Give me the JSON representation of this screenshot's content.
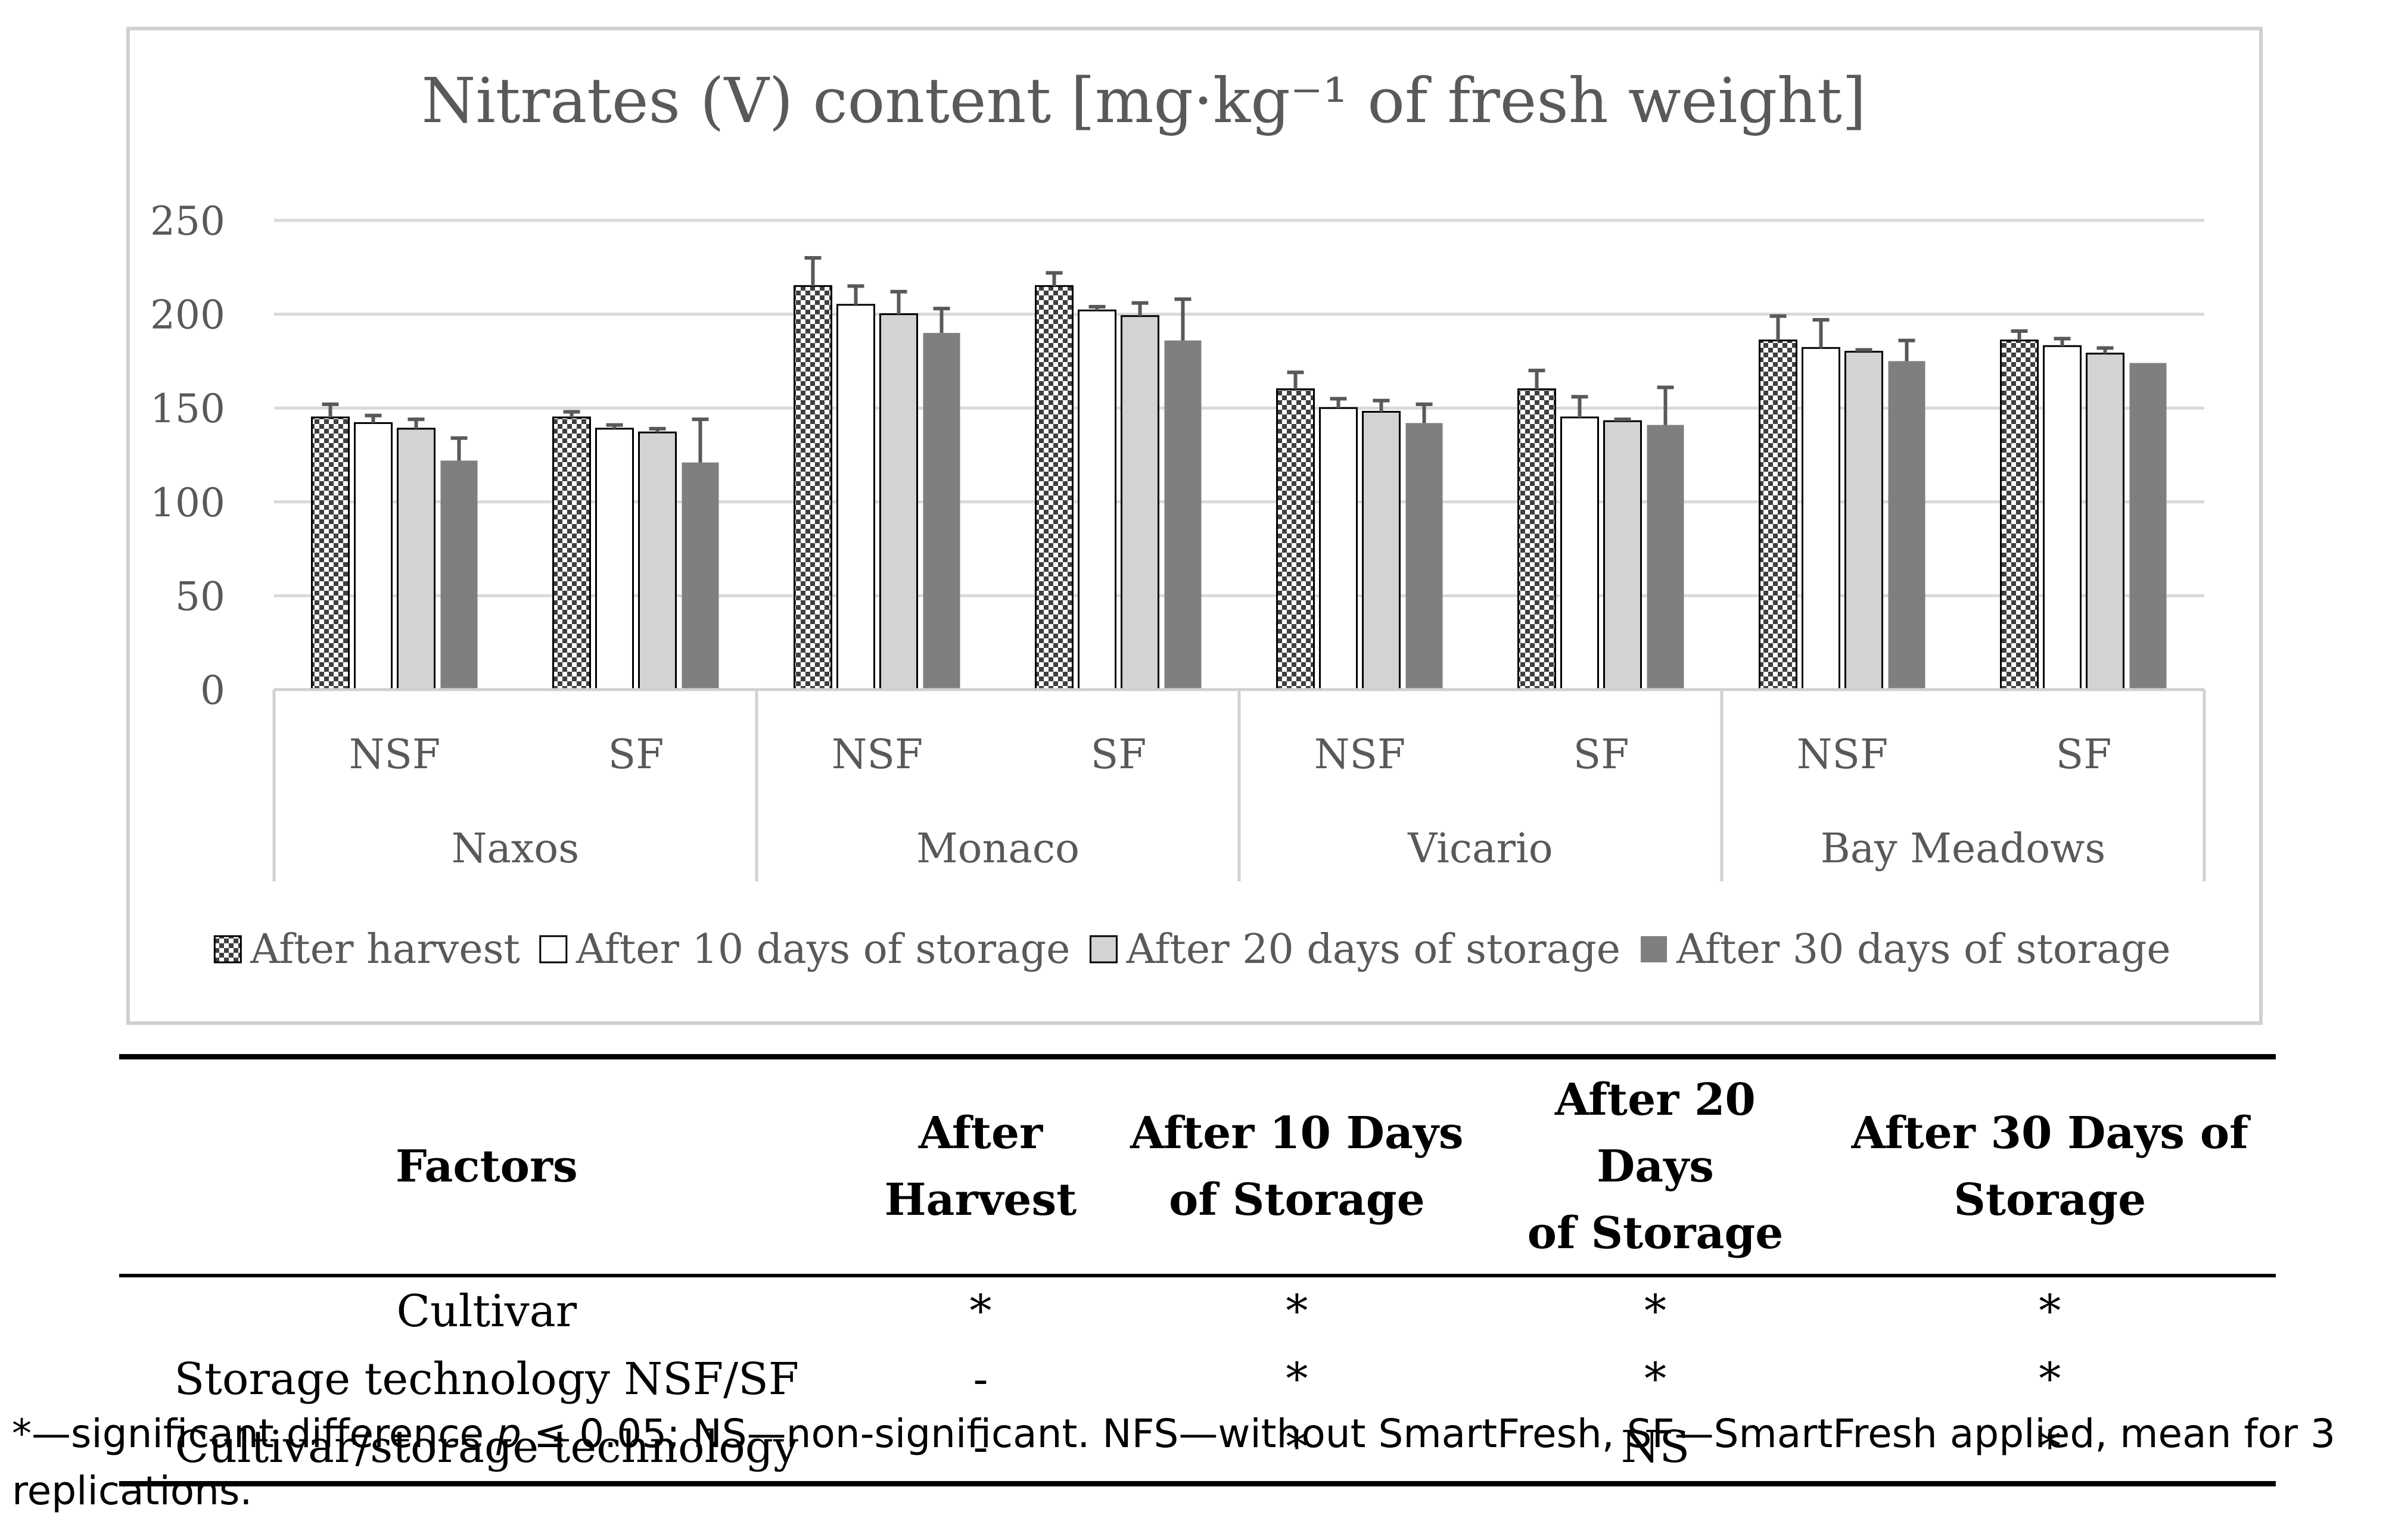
{
  "chart_data": {
    "type": "bar",
    "title": "Nitrates (V) content [mg·kg⁻¹ of fresh weight]",
    "ylim": [
      0,
      250
    ],
    "yticks": [
      0,
      50,
      100,
      150,
      200,
      250
    ],
    "grid": true,
    "legend_position": "bottom",
    "groups": [
      {
        "cultivar": "Naxos",
        "treatments": [
          "NSF",
          "SF"
        ]
      },
      {
        "cultivar": "Monaco",
        "treatments": [
          "NSF",
          "SF"
        ]
      },
      {
        "cultivar": "Vicario",
        "treatments": [
          "NSF",
          "SF"
        ]
      },
      {
        "cultivar": "Bay Meadows",
        "treatments": [
          "NSF",
          "SF"
        ]
      }
    ],
    "series": [
      {
        "name": "After harvest",
        "style": "checker",
        "values": [
          145,
          145,
          215,
          215,
          160,
          160,
          186,
          186
        ],
        "errors": [
          7,
          3,
          15,
          7,
          9,
          10,
          13,
          5
        ]
      },
      {
        "name": "After 10 days of storage",
        "style": "white",
        "values": [
          142,
          139,
          205,
          202,
          150,
          145,
          182,
          183
        ],
        "errors": [
          4,
          2,
          10,
          2,
          5,
          11,
          15,
          4
        ]
      },
      {
        "name": "After 20 days of storage",
        "style": "light",
        "values": [
          139,
          137,
          200,
          199,
          148,
          143,
          180,
          179
        ],
        "errors": [
          5,
          2,
          12,
          7,
          6,
          1,
          1,
          3
        ]
      },
      {
        "name": "After 30 days of storage",
        "style": "dark",
        "values": [
          122,
          121,
          190,
          186,
          142,
          141,
          175,
          174
        ],
        "errors": [
          12,
          23,
          13,
          22,
          10,
          20,
          11,
          0
        ]
      }
    ]
  },
  "colors": {
    "checker_dark": "#3f3f3f",
    "checker_light": "#ffffff",
    "white_bar": "#ffffff",
    "light_bar": "#d3d3d3",
    "dark_bar": "#7f7f7f",
    "bar_outline": "#000000"
  },
  "table": {
    "headers": {
      "factors": "Factors",
      "after_harvest": "After Harvest",
      "after_10": [
        "After 10 Days",
        "of Storage"
      ],
      "after_20": [
        "After 20 Days",
        "of Storage"
      ],
      "after_30": [
        "After 30 Days of",
        "Storage"
      ]
    },
    "rows": [
      {
        "factor": "Cultivar",
        "after_harvest": "*",
        "after_10": "*",
        "after_20": "*",
        "after_30": "*"
      },
      {
        "factor": "Storage technology NSF/SF",
        "after_harvest": "-",
        "after_10": "*",
        "after_20": "*",
        "after_30": "*"
      },
      {
        "factor": "Cultivar/storage technology",
        "after_harvest": "-",
        "after_10": "*",
        "after_20": "NS",
        "after_30": "*"
      }
    ]
  },
  "footnote": {
    "star": "*",
    "part1": "—significant difference ",
    "p_symbol": "p",
    "part2": " ≤ 0.05; NS—non-significant. NFS—without SmartFresh, SF—SmartFresh applied, mean for 3 replications."
  }
}
